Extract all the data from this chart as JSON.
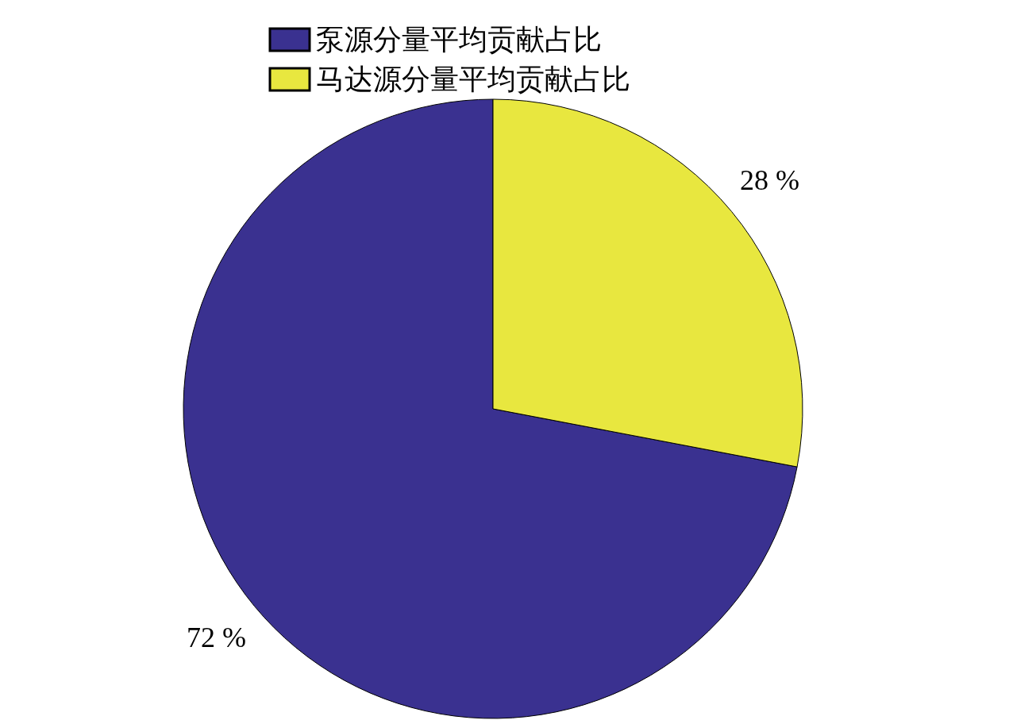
{
  "chart_data": {
    "type": "pie",
    "categories": [
      "泵源分量平均贡献占比",
      "马达源分量平均贡献占比"
    ],
    "values": [
      72,
      28
    ],
    "colors": [
      "#3a3190",
      "#e8e73f"
    ],
    "value_labels": [
      "72 %",
      "28 %"
    ],
    "legend": "top"
  }
}
